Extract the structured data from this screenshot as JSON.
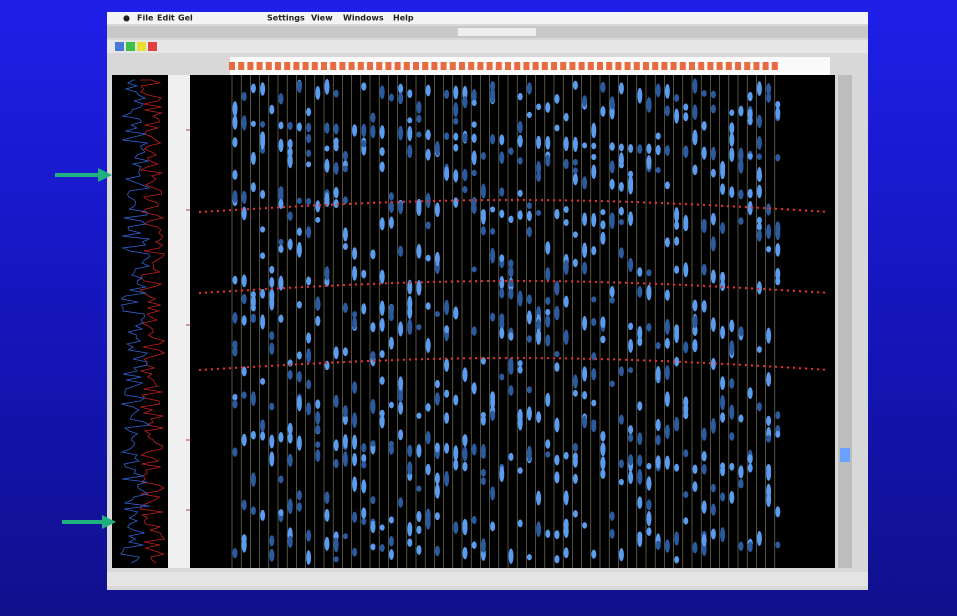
{
  "menu": {
    "items": [
      "File",
      "Edit",
      "Gel",
      "Settings",
      "View",
      "Windows",
      "Help"
    ]
  }
}
